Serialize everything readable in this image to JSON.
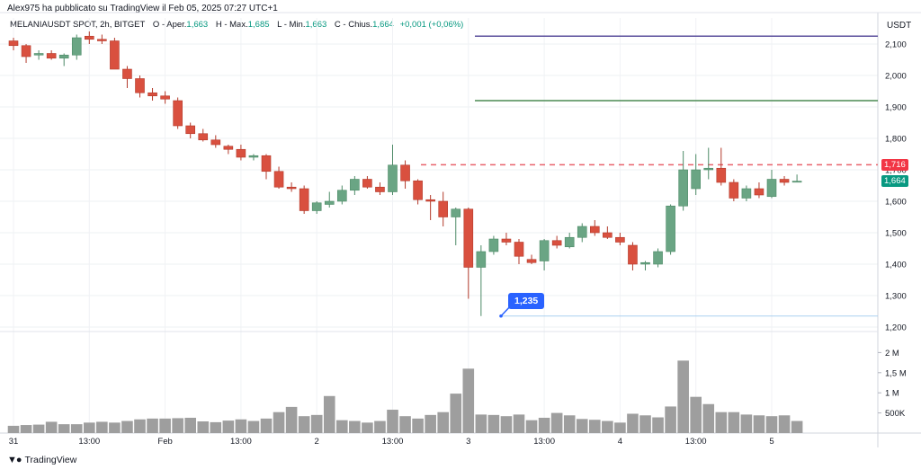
{
  "publisher_line": "Alex975 ha pubblicato su TradingView il Feb 05, 2025 07:27 UTC+1",
  "legend": {
    "symbol": "MELANIAUSDT SPOT, 2h, BITGET",
    "open_label": "O - Aper.",
    "open": "1,663",
    "high_label": "H - Max.",
    "high": "1,685",
    "low_label": "L - Min.",
    "low": "1,663",
    "close_label": "C - Chius.",
    "close": "1,664",
    "change": "+0,001 (+0,06%)"
  },
  "currency": "USDT",
  "brand": "TradingView",
  "colors": {
    "up": "#6aa584",
    "down": "#d9503f",
    "purple_line": "#5b4f9c",
    "green_line": "#4a8a52",
    "dashed_line": "#e8616b",
    "callout": "#2962ff",
    "volume": "#9e9e9e"
  },
  "price_flags": {
    "dashed_level": "1,716",
    "last": "1,664"
  },
  "callout_label": "1,235",
  "chart_data": {
    "type": "candlestick",
    "y_ticks": [
      "2,100",
      "2,000",
      "1,900",
      "1,800",
      "1,700",
      "1,600",
      "1,500",
      "1,400",
      "1,300",
      "1,200"
    ],
    "y_range": [
      1.19,
      2.18
    ],
    "volume_ticks": [
      "2 M",
      "1,5 M",
      "1 M",
      "500K"
    ],
    "x_tick_labels": [
      {
        "label": "31",
        "bar": 0
      },
      {
        "label": "13:00",
        "bar": 6
      },
      {
        "label": "Feb",
        "bar": 12
      },
      {
        "label": "13:00",
        "bar": 18
      },
      {
        "label": "2",
        "bar": 24
      },
      {
        "label": "13:00",
        "bar": 30
      },
      {
        "label": "3",
        "bar": 36
      },
      {
        "label": "13:00",
        "bar": 42
      },
      {
        "label": "4",
        "bar": 48
      },
      {
        "label": "13:00",
        "bar": 54
      },
      {
        "label": "5",
        "bar": 60
      }
    ],
    "horizontal_levels": [
      {
        "price": 2.125,
        "style": "solid",
        "color": "purple"
      },
      {
        "price": 1.92,
        "style": "solid",
        "color": "green"
      },
      {
        "price": 1.716,
        "style": "dashed",
        "color": "red"
      },
      {
        "price": 1.235,
        "style": "solid",
        "color": "lightblue"
      }
    ],
    "ohlc": [
      [
        2.11,
        2.12,
        2.08,
        2.095
      ],
      [
        2.095,
        2.1,
        2.04,
        2.06
      ],
      [
        2.065,
        2.08,
        2.05,
        2.07
      ],
      [
        2.07,
        2.08,
        2.05,
        2.055
      ],
      [
        2.055,
        2.07,
        2.03,
        2.065
      ],
      [
        2.065,
        2.13,
        2.05,
        2.12
      ],
      [
        2.125,
        2.14,
        2.1,
        2.115
      ],
      [
        2.115,
        2.13,
        2.1,
        2.11
      ],
      [
        2.11,
        2.12,
        2.02,
        2.02
      ],
      [
        2.02,
        2.03,
        1.96,
        1.99
      ],
      [
        1.99,
        2.0,
        1.93,
        1.945
      ],
      [
        1.945,
        1.96,
        1.92,
        1.935
      ],
      [
        1.935,
        1.95,
        1.91,
        1.925
      ],
      [
        1.92,
        1.93,
        1.83,
        1.84
      ],
      [
        1.84,
        1.85,
        1.8,
        1.815
      ],
      [
        1.815,
        1.83,
        1.79,
        1.795
      ],
      [
        1.795,
        1.81,
        1.77,
        1.78
      ],
      [
        1.775,
        1.78,
        1.75,
        1.765
      ],
      [
        1.765,
        1.78,
        1.73,
        1.74
      ],
      [
        1.74,
        1.75,
        1.73,
        1.745
      ],
      [
        1.745,
        1.75,
        1.67,
        1.695
      ],
      [
        1.695,
        1.71,
        1.64,
        1.645
      ],
      [
        1.645,
        1.66,
        1.63,
        1.64
      ],
      [
        1.64,
        1.65,
        1.56,
        1.57
      ],
      [
        1.57,
        1.6,
        1.56,
        1.595
      ],
      [
        1.59,
        1.63,
        1.58,
        1.6
      ],
      [
        1.6,
        1.65,
        1.59,
        1.635
      ],
      [
        1.635,
        1.68,
        1.62,
        1.67
      ],
      [
        1.67,
        1.68,
        1.64,
        1.645
      ],
      [
        1.645,
        1.66,
        1.62,
        1.63
      ],
      [
        1.63,
        1.78,
        1.62,
        1.715
      ],
      [
        1.715,
        1.73,
        1.64,
        1.665
      ],
      [
        1.665,
        1.67,
        1.59,
        1.605
      ],
      [
        1.605,
        1.62,
        1.54,
        1.6
      ],
      [
        1.6,
        1.63,
        1.52,
        1.55
      ],
      [
        1.55,
        1.58,
        1.46,
        1.575
      ],
      [
        1.575,
        1.58,
        1.29,
        1.39
      ],
      [
        1.39,
        1.46,
        1.235,
        1.44
      ],
      [
        1.44,
        1.49,
        1.43,
        1.48
      ],
      [
        1.48,
        1.5,
        1.46,
        1.47
      ],
      [
        1.47,
        1.48,
        1.4,
        1.425
      ],
      [
        1.415,
        1.43,
        1.4,
        1.405
      ],
      [
        1.41,
        1.48,
        1.38,
        1.475
      ],
      [
        1.475,
        1.49,
        1.45,
        1.46
      ],
      [
        1.455,
        1.5,
        1.45,
        1.485
      ],
      [
        1.485,
        1.53,
        1.47,
        1.52
      ],
      [
        1.52,
        1.54,
        1.49,
        1.5
      ],
      [
        1.5,
        1.52,
        1.48,
        1.485
      ],
      [
        1.485,
        1.5,
        1.46,
        1.47
      ],
      [
        1.46,
        1.47,
        1.38,
        1.4
      ],
      [
        1.4,
        1.41,
        1.38,
        1.405
      ],
      [
        1.4,
        1.45,
        1.39,
        1.44
      ],
      [
        1.44,
        1.59,
        1.43,
        1.585
      ],
      [
        1.585,
        1.76,
        1.57,
        1.7
      ],
      [
        1.64,
        1.75,
        1.62,
        1.7
      ],
      [
        1.7,
        1.77,
        1.67,
        1.705
      ],
      [
        1.705,
        1.77,
        1.65,
        1.66
      ],
      [
        1.66,
        1.67,
        1.6,
        1.61
      ],
      [
        1.61,
        1.65,
        1.6,
        1.64
      ],
      [
        1.64,
        1.66,
        1.61,
        1.62
      ],
      [
        1.615,
        1.7,
        1.61,
        1.67
      ],
      [
        1.67,
        1.68,
        1.65,
        1.66
      ],
      [
        1.663,
        1.685,
        1.663,
        1.664
      ]
    ],
    "volume_millions": [
      0.18,
      0.2,
      0.21,
      0.28,
      0.22,
      0.22,
      0.26,
      0.28,
      0.26,
      0.3,
      0.34,
      0.36,
      0.36,
      0.37,
      0.38,
      0.29,
      0.27,
      0.31,
      0.34,
      0.3,
      0.36,
      0.52,
      0.65,
      0.42,
      0.45,
      0.92,
      0.32,
      0.3,
      0.26,
      0.3,
      0.58,
      0.42,
      0.36,
      0.45,
      0.52,
      0.98,
      1.6,
      0.46,
      0.45,
      0.42,
      0.46,
      0.32,
      0.38,
      0.5,
      0.44,
      0.35,
      0.33,
      0.3,
      0.26,
      0.48,
      0.44,
      0.39,
      0.66,
      1.8,
      0.9,
      0.72,
      0.52,
      0.52,
      0.46,
      0.44,
      0.42,
      0.44,
      0.3
    ]
  }
}
